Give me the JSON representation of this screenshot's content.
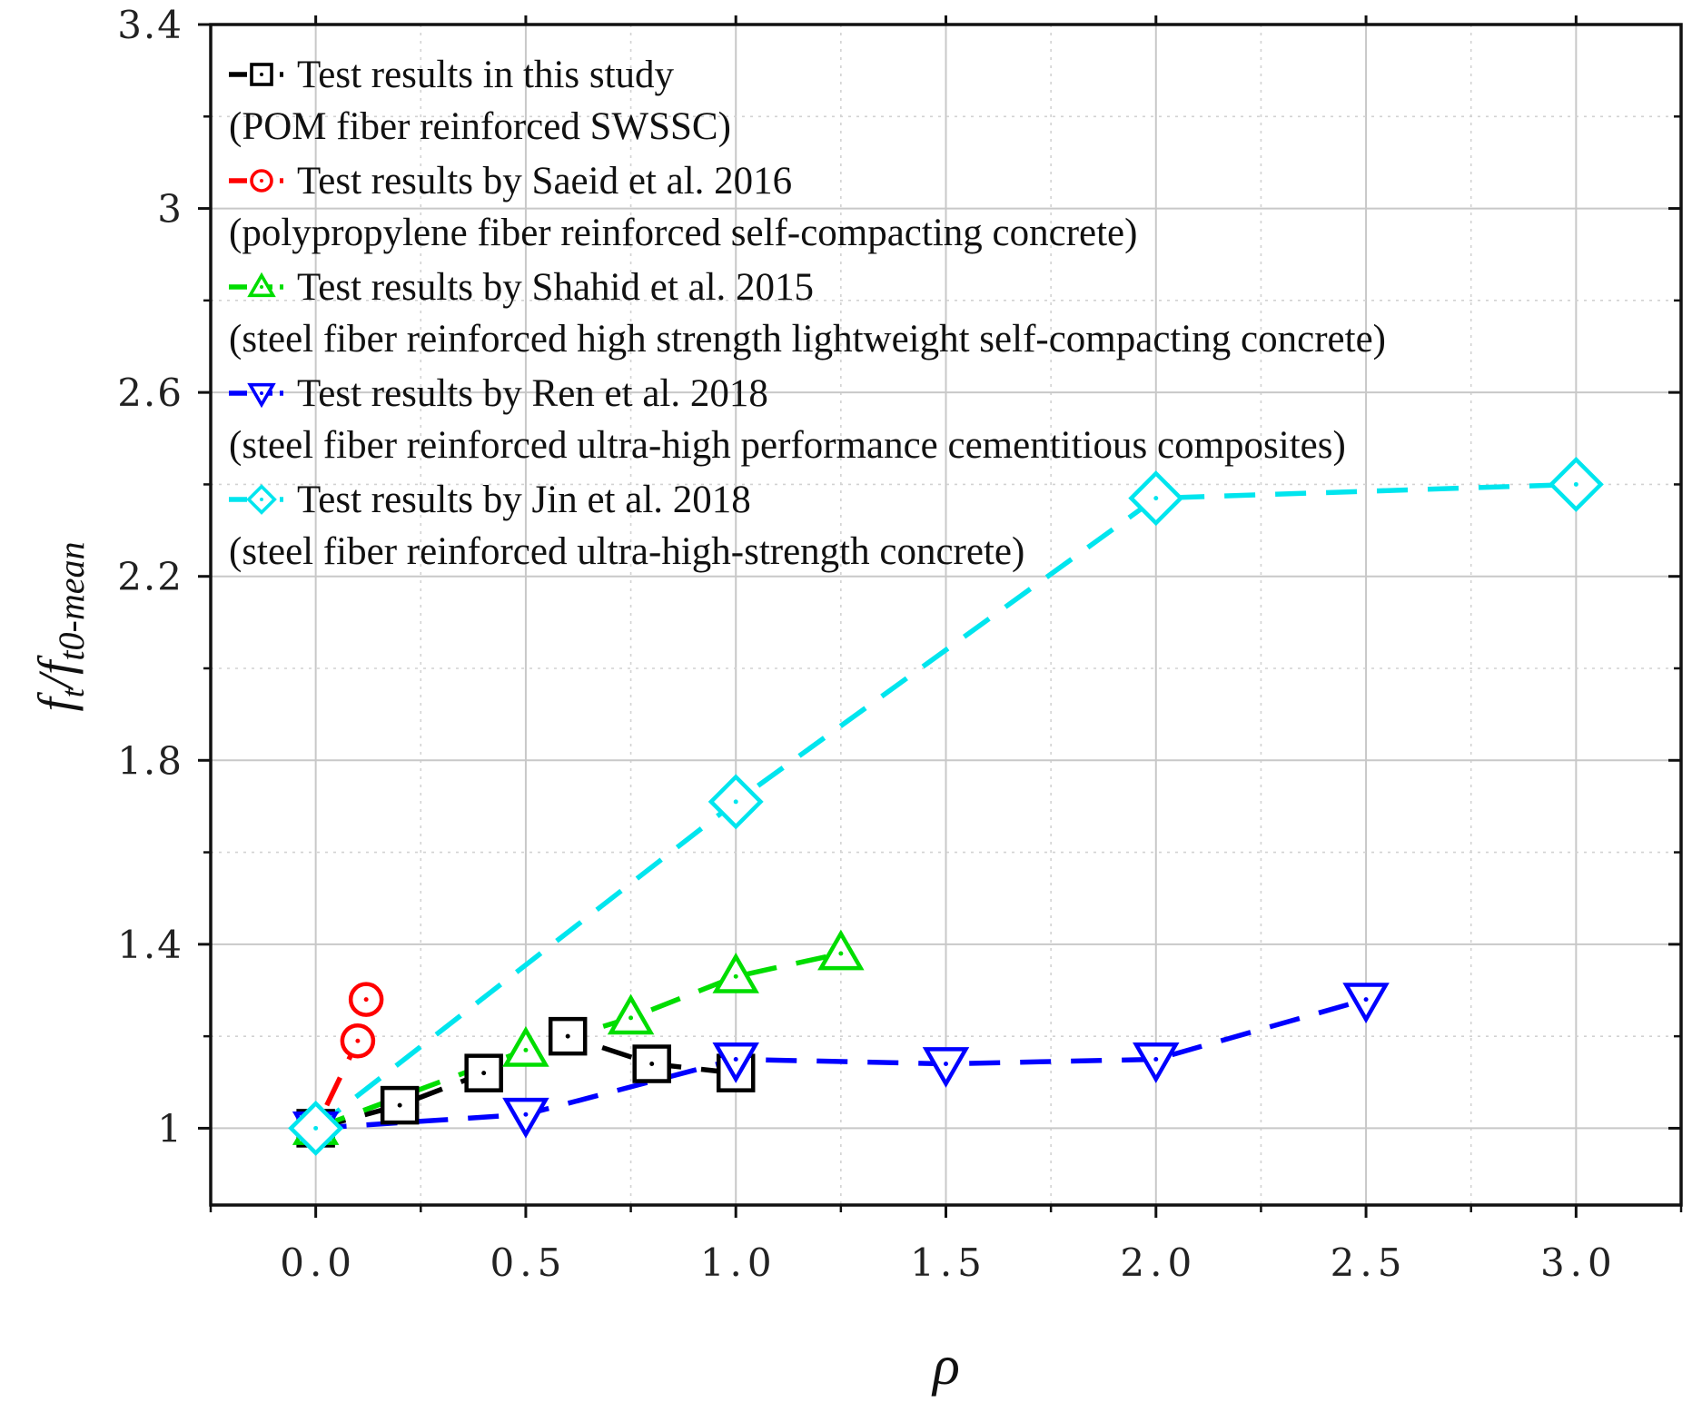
{
  "chart_data": {
    "type": "line",
    "xlabel": "ρ",
    "ylabel": {
      "main": "f",
      "main_sub": "t",
      "den": "f",
      "den_sub": "t0-mean"
    },
    "xlim": [
      -0.25,
      3.25
    ],
    "ylim": [
      0.833,
      3.4
    ],
    "xticks": [
      0.0,
      0.5,
      1.0,
      1.5,
      2.0,
      2.5,
      3.0
    ],
    "xtick_labels": [
      "0.0",
      "0.5",
      "1.0",
      "1.5",
      "2.0",
      "2.5",
      "3.0"
    ],
    "yticks": [
      1.0,
      1.4,
      1.8,
      2.2,
      2.6,
      3.0,
      3.4
    ],
    "ytick_labels": [
      "1",
      "1.4",
      "1.8",
      "2.2",
      "2.6",
      "3",
      "3.4"
    ],
    "grid": true,
    "legend_position": "top-left",
    "series": [
      {
        "name": "Test results in this study",
        "note": "(POM fiber reinforced SWSSC)",
        "color": "#000000",
        "marker": "square",
        "x": [
          0.0,
          0.2,
          0.4,
          0.6,
          0.8,
          1.0
        ],
        "y": [
          1.0,
          1.05,
          1.12,
          1.2,
          1.14,
          1.12
        ]
      },
      {
        "name": "Test results by Saeid et al.  2016",
        "note": "(polypropylene fiber reinforced self-compacting concrete)",
        "color": "#ff0000",
        "marker": "circle",
        "x": [
          0.0,
          0.1,
          0.12
        ],
        "y": [
          1.0,
          1.19,
          1.28
        ]
      },
      {
        "name": "Test results by Shahid et al.  2015",
        "note": "(steel fiber reinforced high strength lightweight self-compacting concrete)",
        "color": "#00dd00",
        "marker": "triangle-up",
        "x": [
          0.0,
          0.5,
          0.75,
          1.0,
          1.25
        ],
        "y": [
          1.0,
          1.17,
          1.24,
          1.33,
          1.38
        ]
      },
      {
        "name": "Test results by Ren et al.  2018",
        "note": "(steel fiber reinforced ultra-high performance cementitious composites)",
        "color": "#0000ff",
        "marker": "triangle-down",
        "x": [
          0.0,
          0.5,
          1.0,
          1.5,
          2.0,
          2.5
        ],
        "y": [
          1.0,
          1.03,
          1.15,
          1.14,
          1.15,
          1.28
        ]
      },
      {
        "name": "Test results by Jin et al.  2018",
        "note": "(steel fiber reinforced ultra-high-strength concrete)",
        "color": "#00e5ee",
        "marker": "diamond",
        "x": [
          0.0,
          1.0,
          2.0,
          3.0
        ],
        "y": [
          1.0,
          1.71,
          2.37,
          2.4
        ]
      }
    ]
  }
}
